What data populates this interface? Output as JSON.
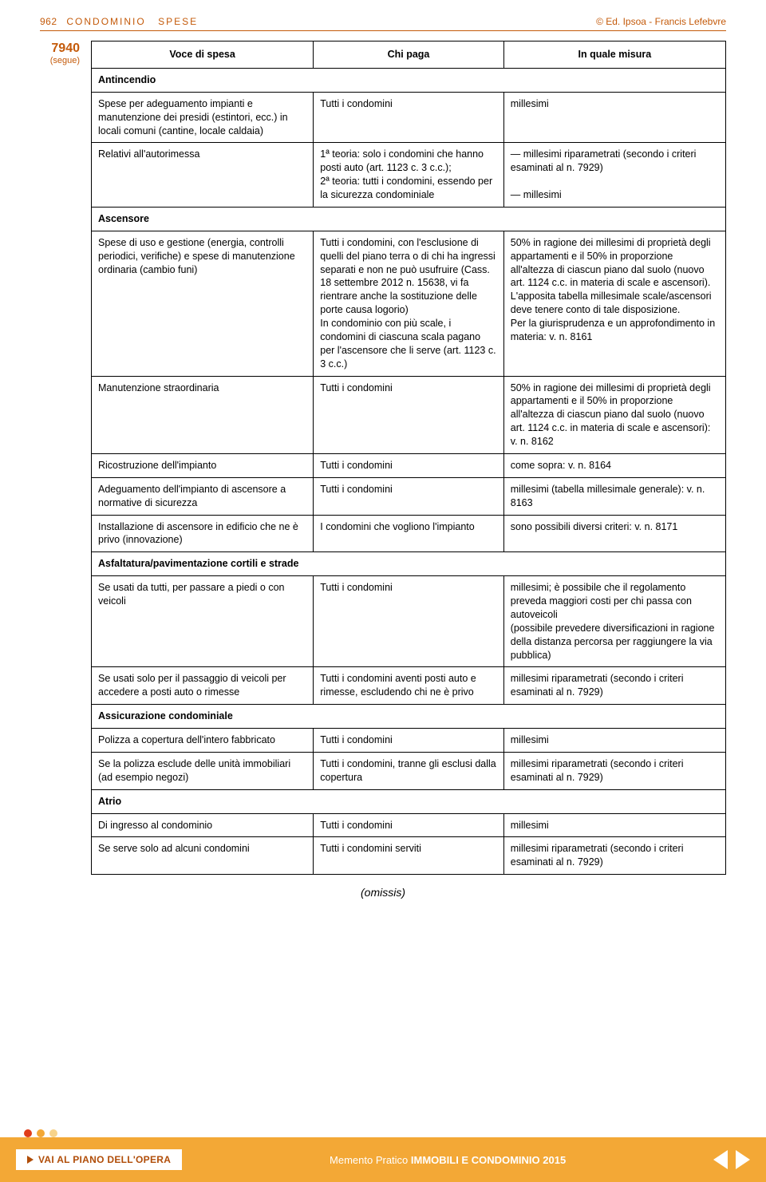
{
  "header": {
    "page_number": "962",
    "section": "CONDOMINIO",
    "subsection": "SPESE",
    "publisher": "© Ed. Ipsoa - Francis Lefebvre"
  },
  "margin": {
    "ref_number": "7940",
    "note": "(segue)"
  },
  "table": {
    "headers": [
      "Voce di spesa",
      "Chi paga",
      "In quale misura"
    ],
    "rows": [
      {
        "type": "section",
        "label": "Antincendio"
      },
      {
        "type": "row",
        "c1": "Spese per adeguamento impianti e manutenzione dei presidi (estintori, ecc.) in locali comuni (cantine, locale caldaia)",
        "c2": "Tutti i condomini",
        "c3": "millesimi"
      },
      {
        "type": "row",
        "c1": "Relativi all'autorimessa",
        "c2": "1ª teoria: solo i condomini che hanno posti auto (art. 1123 c. 3 c.c.);\n2ª teoria: tutti i condomini, essendo per la sicurezza condominiale",
        "c3": "— millesimi riparametrati (secondo i criteri esaminati al n. 7929)\n\n— millesimi"
      },
      {
        "type": "section",
        "label": "Ascensore"
      },
      {
        "type": "row",
        "c1": "Spese di uso e gestione (energia, controlli periodici, verifiche) e spese di manutenzione ordinaria (cambio funi)",
        "c2": "Tutti i condomini, con l'esclusione di quelli del piano terra o di chi ha ingressi separati e non ne può usufruire (Cass. 18 settembre 2012 n. 15638, vi fa rientrare anche la sostituzione delle porte causa logorio)\nIn condominio con più scale, i condomini di ciascuna scala pagano per l'ascensore che li serve (art. 1123 c. 3 c.c.)",
        "c3": "50% in ragione dei millesimi di proprietà degli appartamenti e il 50% in proporzione all'altezza di ciascun piano dal suolo (nuovo art. 1124 c.c. in materia di scale e ascensori). L'apposita tabella millesimale scale/ascensori deve tenere conto di tale disposizione.\nPer la giurisprudenza e un approfondimento in materia: v. n. 8161"
      },
      {
        "type": "row",
        "c1": "Manutenzione straordinaria",
        "c2": "Tutti i condomini",
        "c3": "50% in ragione dei millesimi di proprietà degli appartamenti e il 50% in proporzione all'altezza di ciascun piano dal suolo (nuovo art. 1124 c.c. in materia di scale e ascensori): v. n. 8162"
      },
      {
        "type": "row",
        "c1": "Ricostruzione dell'impianto",
        "c2": "Tutti i condomini",
        "c3": "come sopra: v. n. 8164"
      },
      {
        "type": "row",
        "c1": "Adeguamento dell'impianto di ascensore a normative di sicurezza",
        "c2": "Tutti i condomini",
        "c3": "millesimi (tabella millesimale generale): v. n. 8163"
      },
      {
        "type": "row",
        "c1": "Installazione di ascensore in edificio che ne è privo (innovazione)",
        "c2": "I condomini che vogliono l'impianto",
        "c3": "sono possibili diversi criteri: v. n. 8171"
      },
      {
        "type": "section",
        "label": "Asfaltatura/pavimentazione cortili e strade"
      },
      {
        "type": "row",
        "c1": "Se usati da tutti, per passare a piedi o con veicoli",
        "c2": "Tutti i condomini",
        "c3": "millesimi; è possibile che il regolamento preveda maggiori costi per chi passa con autoveicoli\n(possibile prevedere diversificazioni in ragione della distanza percorsa per raggiungere la via pubblica)"
      },
      {
        "type": "row",
        "c1": "Se usati solo per il passaggio di veicoli per accedere a posti auto o rimesse",
        "c2": "Tutti i condomini aventi posti auto e rimesse, escludendo chi ne è privo",
        "c3": "millesimi riparametrati (secondo i criteri esaminati al n. 7929)"
      },
      {
        "type": "section",
        "label": "Assicurazione condominiale"
      },
      {
        "type": "row",
        "c1": "Polizza a copertura dell'intero fabbricato",
        "c2": "Tutti i condomini",
        "c3": "millesimi"
      },
      {
        "type": "row",
        "c1": "Se la polizza esclude delle unità immobiliari (ad esempio negozi)",
        "c2": "Tutti i condomini, tranne gli esclusi dalla copertura",
        "c3": "millesimi riparametrati (secondo i criteri esaminati al n. 7929)"
      },
      {
        "type": "section",
        "label": "Atrio"
      },
      {
        "type": "row",
        "c1": "Di ingresso al condominio",
        "c2": "Tutti i condomini",
        "c3": "millesimi"
      },
      {
        "type": "row",
        "c1": "Se serve solo ad alcuni condomini",
        "c2": "Tutti i condomini serviti",
        "c3": "millesimi riparametrati (secondo i criteri esaminati al n. 7929)"
      }
    ],
    "col_widths": [
      "35%",
      "30%",
      "35%"
    ]
  },
  "omissis": "(omissis)",
  "footer": {
    "dot_colors": [
      "#e03d1a",
      "#f3a836",
      "#f7d38a"
    ],
    "button_label": "VAI AL PIANO DELL'OPERA",
    "center_prefix": "Memento Pratico ",
    "center_bold": "IMMOBILI E CONDOMINIO 2015"
  }
}
